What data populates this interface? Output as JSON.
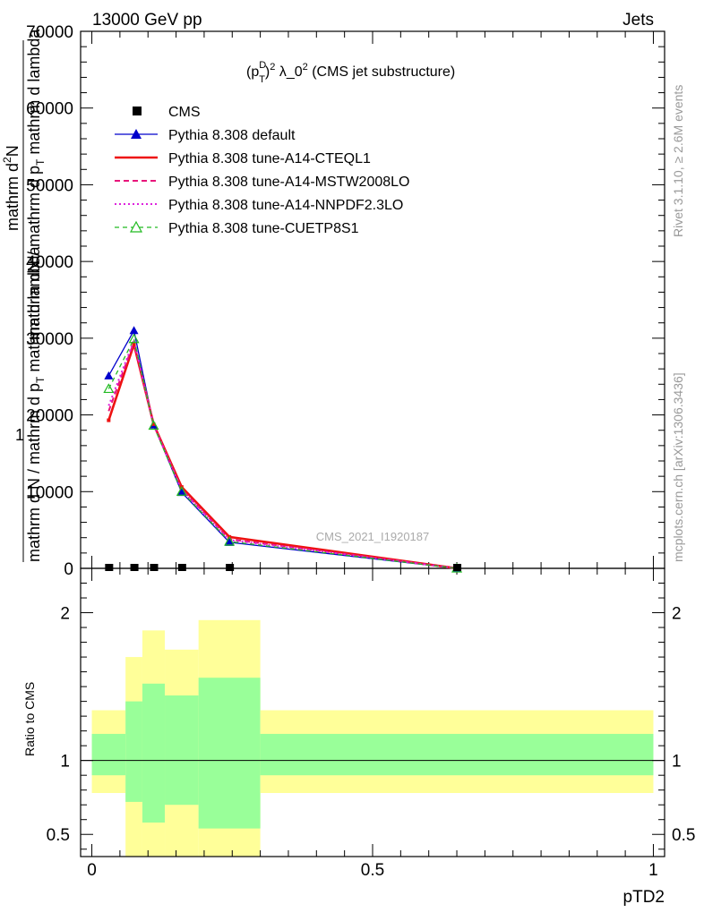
{
  "header": {
    "left": "13000 GeV pp",
    "right": "Jets"
  },
  "plot_title": {
    "base": "(p",
    "sup_d": "D",
    "sub_t": "T",
    "sup_2": "2",
    "rest": " λ_0",
    "sup_2b": "2",
    "tail": " (CMS jet substructure)"
  },
  "ylabel": {
    "one": "1",
    "line1": "mathrm d N / mathrm d p",
    "sub1": "T",
    "line1b": " mathrm d lambda",
    "line2": "mathrm d",
    "sup2": "2",
    "line2b": "N",
    "line3": "mathrm dN / mathrm d p",
    "sub3": "T",
    "line3b": " mathrm d lambda"
  },
  "side": {
    "rivet": "Rivet 3.1.10, ≥ 2.6M events",
    "mcplots": "mcplots.cern.ch [arXiv:1306.3436]"
  },
  "watermark": "CMS_2021_I1920187",
  "xlabel": "pTD2",
  "ratio_ylabel": "Ratio to CMS",
  "legend": [
    {
      "label": "CMS",
      "color": "#000000",
      "style": "square"
    },
    {
      "label": "Pythia 8.308 default",
      "color": "#0000cc",
      "style": "solid-triangle"
    },
    {
      "label": "Pythia 8.308 tune-A14-CTEQL1",
      "color": "#ee1111",
      "style": "solid-thick"
    },
    {
      "label": "Pythia 8.308 tune-A14-MSTW2008LO",
      "color": "#e8147a",
      "style": "dashed"
    },
    {
      "label": "Pythia 8.308 tune-A14-NNPDF2.3LO",
      "color": "#dd22dd",
      "style": "dotted"
    },
    {
      "label": "Pythia 8.308 tune-CUETP8S1",
      "color": "#22bb22",
      "style": "dashed-open-triangle"
    }
  ],
  "chart_data": {
    "type": "line",
    "x": [
      0.03,
      0.075,
      0.11,
      0.16,
      0.245,
      0.65
    ],
    "xlim": [
      -0.02,
      1.02
    ],
    "ylim": [
      0,
      70000
    ],
    "yticks": [
      0,
      10000,
      20000,
      30000,
      40000,
      50000,
      60000,
      70000
    ],
    "xticks": [
      0,
      0.5,
      1
    ],
    "cms_values": [
      0,
      0,
      0,
      0,
      0,
      0
    ],
    "series": [
      {
        "name": "Pythia 8.308 default",
        "values": [
          25100,
          31000,
          18700,
          9900,
          3400,
          0
        ],
        "color": "#0000cc",
        "marker": "triangle"
      },
      {
        "name": "Pythia 8.308 tune-A14-CTEQL1",
        "values": [
          19300,
          29200,
          18800,
          10600,
          4100,
          0
        ],
        "color": "#ee1111",
        "marker": "square"
      },
      {
        "name": "Pythia 8.308 tune-A14-MSTW2008LO",
        "values": [
          20500,
          29500,
          18700,
          10300,
          3800,
          0
        ],
        "color": "#e8147a",
        "marker": "none"
      },
      {
        "name": "Pythia 8.308 tune-A14-NNPDF2.3LO",
        "values": [
          21200,
          29700,
          18700,
          10200,
          3700,
          0
        ],
        "color": "#dd22dd",
        "marker": "none"
      },
      {
        "name": "Pythia 8.308 tune-CUETP8S1",
        "values": [
          23400,
          29900,
          18600,
          10000,
          3500,
          0
        ],
        "color": "#22bb22",
        "marker": "open-triangle"
      }
    ],
    "ratio": {
      "ylim": [
        0.35,
        2.3
      ],
      "yticks": [
        0.5,
        1,
        2
      ],
      "ytick_labels": [
        "0.5",
        "1",
        "2"
      ],
      "bins": [
        {
          "lo": 0.0,
          "hi": 0.06,
          "green": [
            0.9,
            1.18
          ],
          "yellow": [
            0.78,
            1.34
          ]
        },
        {
          "lo": 0.06,
          "hi": 0.09,
          "green": [
            0.72,
            1.4
          ],
          "yellow": [
            0.35,
            1.7
          ]
        },
        {
          "lo": 0.09,
          "hi": 0.13,
          "green": [
            0.58,
            1.52
          ],
          "yellow": [
            0.35,
            1.88
          ]
        },
        {
          "lo": 0.13,
          "hi": 0.19,
          "green": [
            0.7,
            1.44
          ],
          "yellow": [
            0.35,
            1.75
          ]
        },
        {
          "lo": 0.19,
          "hi": 0.3,
          "green": [
            0.54,
            1.56
          ],
          "yellow": [
            0.35,
            1.95
          ]
        },
        {
          "lo": 0.3,
          "hi": 1.0,
          "green": [
            0.9,
            1.18
          ],
          "yellow": [
            0.78,
            1.34
          ]
        }
      ],
      "tick_labels_x": [
        "0",
        "0.5",
        "1"
      ]
    }
  }
}
